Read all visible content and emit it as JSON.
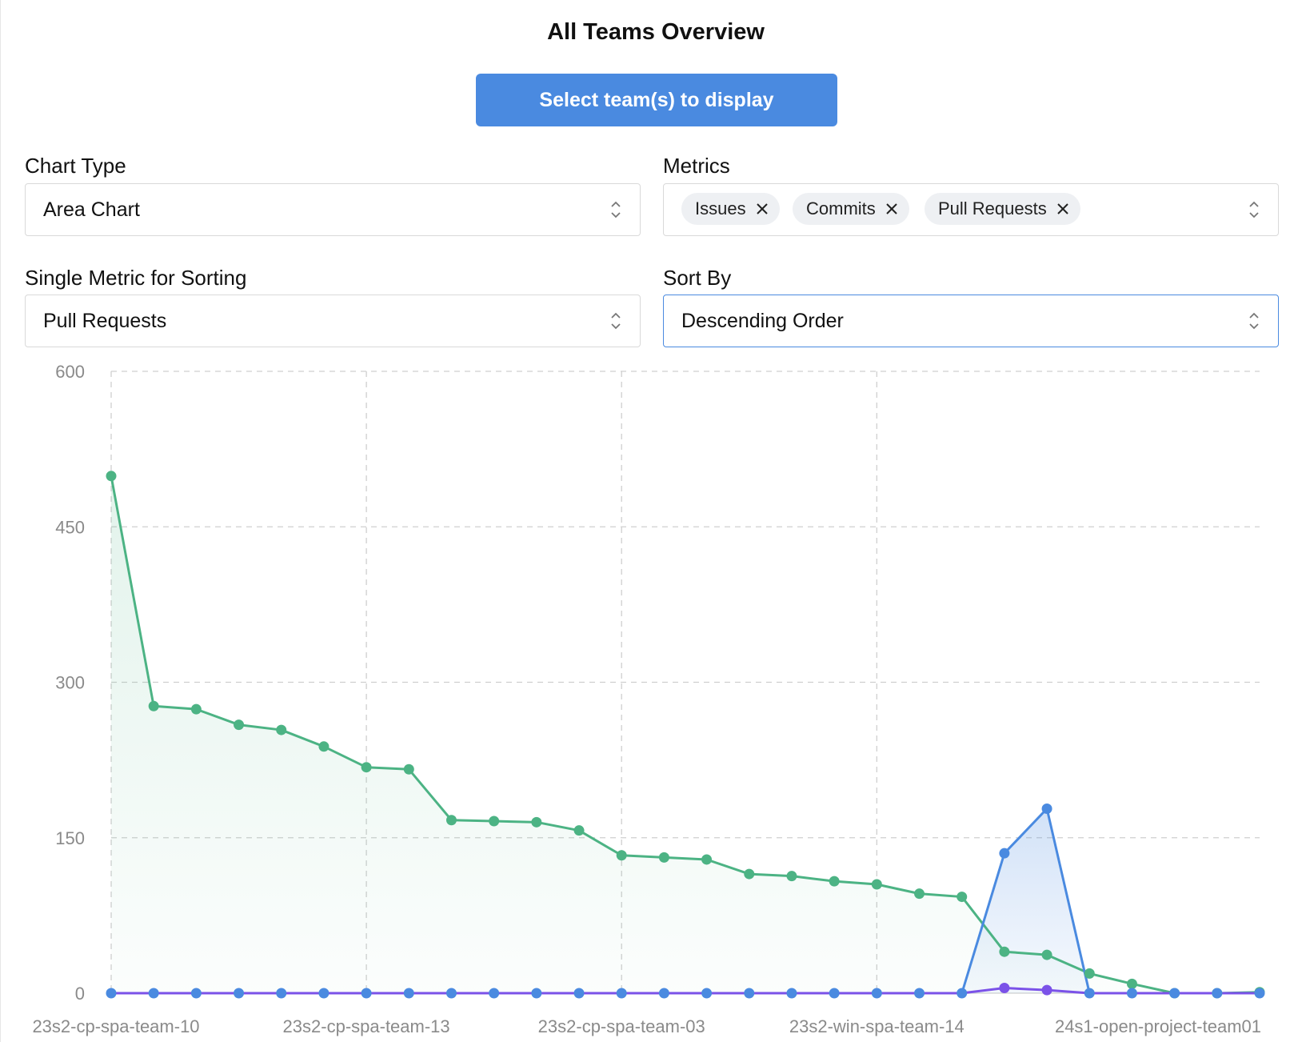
{
  "title": "All Teams Overview",
  "select_teams_label": "Select team(s) to display",
  "chart_type": {
    "label": "Chart Type",
    "value": "Area Chart"
  },
  "metrics": {
    "label": "Metrics",
    "tags": [
      "Issues",
      "Commits",
      "Pull Requests"
    ]
  },
  "sort_metric": {
    "label": "Single Metric for Sorting",
    "value": "Pull Requests"
  },
  "sort_by": {
    "label": "Sort By",
    "value": "Descending Order"
  },
  "colors": {
    "button": "#4a8ae0",
    "green": "#4cb384",
    "blue": "#4a8ae0",
    "purple": "#7b52e8"
  },
  "chart_data": {
    "type": "area",
    "ylim": [
      0,
      600
    ],
    "yticks": [
      0,
      150,
      300,
      450,
      600
    ],
    "x_tick_labels": [
      {
        "index": 0,
        "label": "23s2-cp-spa-team-10"
      },
      {
        "index": 6,
        "label": "23s2-cp-spa-team-13"
      },
      {
        "index": 12,
        "label": "23s2-cp-spa-team-03"
      },
      {
        "index": 18,
        "label": "23s2-win-spa-team-14"
      },
      {
        "index": 27,
        "label": "24s1-open-project-team01"
      }
    ],
    "grid": true,
    "series": [
      {
        "color": "#4cb384",
        "fill": true,
        "values": [
          499,
          277,
          274,
          259,
          254,
          238,
          218,
          216,
          167,
          166,
          165,
          157,
          133,
          131,
          129,
          115,
          113,
          108,
          105,
          96,
          93,
          40,
          37,
          19,
          9,
          0,
          0,
          1
        ]
      },
      {
        "color": "#4a8ae0",
        "fill": true,
        "values": [
          0,
          0,
          0,
          0,
          0,
          0,
          0,
          0,
          0,
          0,
          0,
          0,
          0,
          0,
          0,
          0,
          0,
          0,
          0,
          0,
          0,
          135,
          178,
          0,
          0,
          0,
          0,
          0
        ]
      },
      {
        "color": "#7b52e8",
        "fill": false,
        "markers_from": 21,
        "markers_to": 22,
        "values": [
          0,
          0,
          0,
          0,
          0,
          0,
          0,
          0,
          0,
          0,
          0,
          0,
          0,
          0,
          0,
          0,
          0,
          0,
          0,
          0,
          0,
          5,
          3,
          0,
          0,
          0,
          0,
          0
        ]
      }
    ]
  }
}
